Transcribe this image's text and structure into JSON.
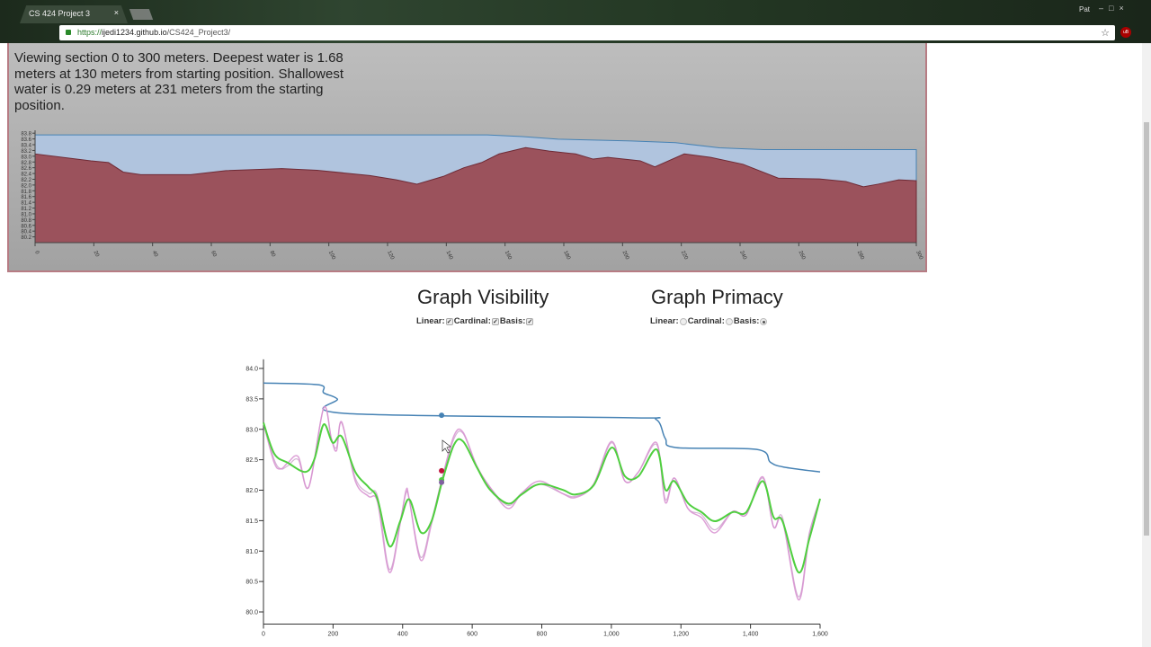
{
  "browser": {
    "tab_title": "CS 424 Project 3",
    "url_scheme": "https://",
    "url_host": "ijedi1234.github.io",
    "url_path": "/CS424_Project3/",
    "user": "Pat",
    "tab_close": "×",
    "star": "☆",
    "ext": "uB"
  },
  "summary": "Viewing section 0 to 300 meters. Deepest water is 1.68 meters at 130 meters from starting position. Shallowest water is 0.29 meters at 231 meters from the starting position.",
  "visibility": {
    "title": "Graph Visibility",
    "options": [
      {
        "label": "Linear:",
        "checked": true
      },
      {
        "label": "Cardinal:",
        "checked": true
      },
      {
        "label": "Basis:",
        "checked": true
      }
    ]
  },
  "primacy": {
    "title": "Graph Primacy",
    "options": [
      {
        "label": "Linear:",
        "selected": false
      },
      {
        "label": "Cardinal:",
        "selected": false
      },
      {
        "label": "Basis:",
        "selected": true
      }
    ]
  },
  "colors": {
    "water": "#b0c4de",
    "bed": "#9b525c",
    "waterline": "#4682b4",
    "basis": "#4fcf3f",
    "cardinal": "#d78fd0",
    "linear": "#c9a0c9"
  },
  "chart_data": [
    {
      "type": "area",
      "xlim": [
        0,
        300
      ],
      "ylim": [
        80.0,
        83.9
      ],
      "xticks": [
        "0",
        "20",
        "40",
        "60",
        "80",
        "100",
        "120",
        "140",
        "160",
        "180",
        "200",
        "220",
        "240",
        "260",
        "280",
        "300"
      ],
      "yticks": [
        "80.2",
        "80.4",
        "80.6",
        "80.8",
        "81.0",
        "81.2",
        "81.4",
        "81.6",
        "81.8",
        "82.0",
        "82.2",
        "82.4",
        "82.6",
        "82.8",
        "83.0",
        "83.2",
        "83.4",
        "83.6",
        "83.8"
      ],
      "bed": [
        [
          0,
          83.08
        ],
        [
          19,
          82.84
        ],
        [
          25,
          82.78
        ],
        [
          30,
          82.45
        ],
        [
          36,
          82.36
        ],
        [
          53,
          82.36
        ],
        [
          65,
          82.5
        ],
        [
          84,
          82.57
        ],
        [
          96,
          82.51
        ],
        [
          114,
          82.33
        ],
        [
          123,
          82.18
        ],
        [
          130,
          82.03
        ],
        [
          139,
          82.3
        ],
        [
          146,
          82.6
        ],
        [
          152,
          82.78
        ],
        [
          158,
          83.08
        ],
        [
          167,
          83.3
        ],
        [
          175,
          83.18
        ],
        [
          184,
          83.08
        ],
        [
          190,
          82.9
        ],
        [
          195,
          82.96
        ],
        [
          206,
          82.84
        ],
        [
          211,
          82.63
        ],
        [
          221,
          83.08
        ],
        [
          230,
          82.96
        ],
        [
          241,
          82.72
        ],
        [
          253,
          82.24
        ],
        [
          267,
          82.21
        ],
        [
          276,
          82.12
        ],
        [
          282,
          81.94
        ],
        [
          287,
          82.03
        ],
        [
          294,
          82.18
        ],
        [
          300,
          82.15
        ]
      ],
      "water": [
        [
          0,
          83.74
        ],
        [
          154,
          83.74
        ],
        [
          166,
          83.68
        ],
        [
          178,
          83.59
        ],
        [
          203,
          83.53
        ],
        [
          218,
          83.47
        ],
        [
          233,
          83.29
        ],
        [
          248,
          83.23
        ],
        [
          300,
          83.23
        ]
      ]
    },
    {
      "type": "line",
      "xlim": [
        0,
        1600
      ],
      "ylim": [
        79.8,
        84.15
      ],
      "xticks": [
        "0",
        "200",
        "400",
        "600",
        "800",
        "1,000",
        "1,200",
        "1,400",
        "1,600"
      ],
      "yticks": [
        "80.0",
        "80.5",
        "81.0",
        "81.5",
        "82.0",
        "82.5",
        "83.0",
        "83.5",
        "84.0"
      ],
      "series": [
        {
          "key": "water",
          "values": [
            [
              0,
              83.76
            ],
            [
              160,
              83.73
            ],
            [
              173,
              83.6
            ],
            [
              212,
              83.5
            ],
            [
              238,
              83.26
            ],
            [
              1052,
              83.19
            ],
            [
              1129,
              83.16
            ],
            [
              1155,
              82.85
            ],
            [
              1186,
              82.7
            ],
            [
              1418,
              82.67
            ],
            [
              1457,
              82.46
            ],
            [
              1495,
              82.38
            ],
            [
              1600,
              82.3
            ]
          ]
        },
        {
          "key": "linear",
          "values": [
            [
              0,
              83.1
            ],
            [
              31,
              82.5
            ],
            [
              50,
              82.35
            ],
            [
              70,
              82.4
            ],
            [
              100,
              82.5
            ],
            [
              130,
              82.05
            ],
            [
              173,
              83.35
            ],
            [
              195,
              82.85
            ],
            [
              210,
              82.7
            ],
            [
              225,
              83.1
            ],
            [
              264,
              82.2
            ],
            [
              302,
              81.95
            ],
            [
              328,
              81.9
            ],
            [
              362,
              80.7
            ],
            [
              393,
              81.5
            ],
            [
              410,
              81.95
            ],
            [
              419,
              81.85
            ],
            [
              452,
              80.9
            ],
            [
              483,
              81.5
            ],
            [
              514,
              82.2
            ],
            [
              548,
              82.85
            ],
            [
              574,
              82.93
            ],
            [
              613,
              82.38
            ],
            [
              651,
              82.05
            ],
            [
              703,
              81.75
            ],
            [
              742,
              81.95
            ],
            [
              794,
              82.1
            ],
            [
              858,
              81.95
            ],
            [
              897,
              81.9
            ],
            [
              949,
              82.08
            ],
            [
              1001,
              82.78
            ],
            [
              1039,
              82.15
            ],
            [
              1078,
              82.3
            ],
            [
              1130,
              82.75
            ],
            [
              1155,
              81.85
            ],
            [
              1181,
              82.2
            ],
            [
              1220,
              81.7
            ],
            [
              1259,
              81.6
            ],
            [
              1298,
              81.35
            ],
            [
              1349,
              81.65
            ],
            [
              1388,
              81.6
            ],
            [
              1435,
              82.2
            ],
            [
              1466,
              81.4
            ],
            [
              1492,
              81.55
            ],
            [
              1538,
              80.25
            ],
            [
              1569,
              81.3
            ],
            [
              1600,
              81.85
            ]
          ]
        },
        {
          "key": "cardinal",
          "values": [
            [
              0,
              83.1
            ],
            [
              31,
              82.45
            ],
            [
              50,
              82.35
            ],
            [
              70,
              82.45
            ],
            [
              100,
              82.55
            ],
            [
              130,
              82.05
            ],
            [
              173,
              83.35
            ],
            [
              195,
              82.85
            ],
            [
              210,
              82.65
            ],
            [
              225,
              83.12
            ],
            [
              264,
              82.15
            ],
            [
              302,
              81.9
            ],
            [
              328,
              81.8
            ],
            [
              362,
              80.65
            ],
            [
              393,
              81.45
            ],
            [
              410,
              82.0
            ],
            [
              419,
              81.85
            ],
            [
              452,
              80.85
            ],
            [
              483,
              81.45
            ],
            [
              514,
              82.2
            ],
            [
              548,
              82.9
            ],
            [
              574,
              82.95
            ],
            [
              613,
              82.4
            ],
            [
              651,
              82.05
            ],
            [
              703,
              81.7
            ],
            [
              742,
              81.95
            ],
            [
              794,
              82.15
            ],
            [
              858,
              81.95
            ],
            [
              897,
              81.88
            ],
            [
              949,
              82.1
            ],
            [
              1001,
              82.8
            ],
            [
              1039,
              82.15
            ],
            [
              1078,
              82.3
            ],
            [
              1130,
              82.78
            ],
            [
              1155,
              81.8
            ],
            [
              1181,
              82.2
            ],
            [
              1220,
              81.7
            ],
            [
              1259,
              81.55
            ],
            [
              1298,
              81.3
            ],
            [
              1349,
              81.65
            ],
            [
              1388,
              81.6
            ],
            [
              1435,
              82.22
            ],
            [
              1466,
              81.4
            ],
            [
              1492,
              81.5
            ],
            [
              1538,
              80.2
            ],
            [
              1569,
              81.25
            ],
            [
              1600,
              81.86
            ]
          ]
        },
        {
          "key": "basis",
          "values": [
            [
              0,
              83.11
            ],
            [
              31,
              82.6
            ],
            [
              70,
              82.45
            ],
            [
              121,
              82.3
            ],
            [
              147,
              82.52
            ],
            [
              173,
              83.08
            ],
            [
              199,
              82.78
            ],
            [
              225,
              82.88
            ],
            [
              264,
              82.3
            ],
            [
              302,
              82.05
            ],
            [
              328,
              81.85
            ],
            [
              362,
              81.08
            ],
            [
              393,
              81.49
            ],
            [
              419,
              81.85
            ],
            [
              452,
              81.31
            ],
            [
              483,
              81.49
            ],
            [
              514,
              82.15
            ],
            [
              548,
              82.75
            ],
            [
              574,
              82.8
            ],
            [
              613,
              82.38
            ],
            [
              651,
              82.01
            ],
            [
              703,
              81.78
            ],
            [
              742,
              81.93
            ],
            [
              794,
              82.1
            ],
            [
              858,
              82.01
            ],
            [
              897,
              81.93
            ],
            [
              949,
              82.08
            ],
            [
              1001,
              82.7
            ],
            [
              1039,
              82.23
            ],
            [
              1078,
              82.23
            ],
            [
              1130,
              82.67
            ],
            [
              1155,
              82.01
            ],
            [
              1181,
              82.15
            ],
            [
              1220,
              81.79
            ],
            [
              1259,
              81.64
            ],
            [
              1298,
              81.49
            ],
            [
              1349,
              81.64
            ],
            [
              1388,
              81.64
            ],
            [
              1435,
              82.15
            ],
            [
              1466,
              81.56
            ],
            [
              1492,
              81.49
            ],
            [
              1538,
              80.65
            ],
            [
              1569,
              81.2
            ],
            [
              1600,
              81.86
            ]
          ]
        }
      ],
      "markers": [
        {
          "series": "water",
          "x": 512,
          "y": 83.23,
          "color": "#4682b4"
        },
        {
          "series": "linear",
          "x": 512,
          "y": 82.32,
          "color": "#c0103a"
        },
        {
          "series": "basis",
          "x": 512,
          "y": 82.17,
          "color": "#4fcf3f"
        },
        {
          "series": "cardinal",
          "x": 512,
          "y": 82.13,
          "color": "#8060a0"
        }
      ]
    }
  ]
}
